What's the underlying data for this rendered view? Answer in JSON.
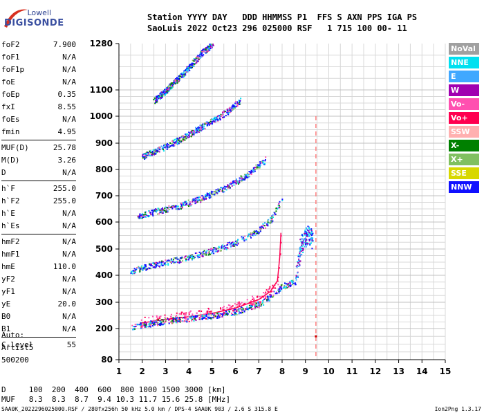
{
  "logo": {
    "line1": "Lowell",
    "line2": "DIGISONDE"
  },
  "header": {
    "row1": "Station YYYY DAY   DDD HHMMSS P1  FFS S AXN PPS IGA PS",
    "row2": "SaoLuis 2022 Oct23 296 025000 RSF   1 715 100 00- 11"
  },
  "params": [
    {
      "k": "foF2",
      "v": "7.900"
    },
    {
      "k": "foF1",
      "v": "N/A"
    },
    {
      "k": "foF1p",
      "v": "N/A"
    },
    {
      "k": "foE",
      "v": "N/A"
    },
    {
      "k": "foEp",
      "v": "0.35"
    },
    {
      "k": "fxI",
      "v": "8.55"
    },
    {
      "k": "foEs",
      "v": "N/A"
    },
    {
      "k": "fmin",
      "v": "4.95"
    },
    {
      "k": "MUF(D)",
      "v": "25.78"
    },
    {
      "k": "M(D)",
      "v": "3.26"
    },
    {
      "k": "D",
      "v": "N/A"
    },
    {
      "k": "h`F",
      "v": "255.0"
    },
    {
      "k": "h`F2",
      "v": "255.0"
    },
    {
      "k": "h`E",
      "v": "N/A"
    },
    {
      "k": "h`Es",
      "v": "N/A"
    },
    {
      "k": "hmF2",
      "v": "N/A"
    },
    {
      "k": "hmF1",
      "v": "N/A"
    },
    {
      "k": "hmE",
      "v": "110.0"
    },
    {
      "k": "yF2",
      "v": "N/A"
    },
    {
      "k": "yF1",
      "v": "N/A"
    },
    {
      "k": "yE",
      "v": "20.0"
    },
    {
      "k": "B0",
      "v": "N/A"
    },
    {
      "k": "B1",
      "v": "N/A"
    },
    {
      "k": "C-level",
      "v": "55"
    }
  ],
  "auto": {
    "l1": "Auto:",
    "l2": "Artist5",
    "l3": "500200"
  },
  "bottom": {
    "d_row": "D     100  200  400  600  800 1000 1500 3000 [km]",
    "muf_row": "MUF   8.3  8.3  8.7  9.4 10.3 11.7 15.6 25.8 [MHz]"
  },
  "footer": {
    "left": "SAA0K_2022296025000.RSF / 280fx256h 50 kHz 5.0 km / DPS-4 SAA0K 903 / 2.6 S 315.8 E",
    "right": "Ion2Png 1.3.17"
  },
  "legend": [
    {
      "label": "NoVal",
      "color": "#a0a0a0"
    },
    {
      "label": "NNE",
      "color": "#00e0f0"
    },
    {
      "label": "E",
      "color": "#40a8ff"
    },
    {
      "label": "W",
      "color": "#a000b0"
    },
    {
      "label": "Vo-",
      "color": "#ff50b0"
    },
    {
      "label": "Vo+",
      "color": "#ff0050"
    },
    {
      "label": "SSW",
      "color": "#ffb0b0"
    },
    {
      "label": "X-",
      "color": "#008000"
    },
    {
      "label": "X+",
      "color": "#80c060"
    },
    {
      "label": "SSE",
      "color": "#d8d800"
    },
    {
      "label": "NNW",
      "color": "#1010ff"
    }
  ],
  "chart_data": {
    "type": "scatter",
    "title": "",
    "xlabel": "",
    "ylabel": "",
    "xlim": [
      1,
      15
    ],
    "ylim": [
      80,
      1280
    ],
    "x_ticks": [
      1,
      2,
      3,
      4,
      5,
      6,
      7,
      8,
      9,
      10,
      11,
      12,
      13,
      14,
      15
    ],
    "y_ticks": [
      80,
      200,
      300,
      400,
      500,
      600,
      700,
      800,
      900,
      1000,
      1100,
      1280
    ],
    "grid": true,
    "y_scale": "virtual-height (nonlinear)",
    "markers": {
      "vertical_dashed_x": 9.45,
      "cursor_point": [
        9.45,
        170
      ]
    },
    "series": [
      {
        "name": "Vo+",
        "trace": "1st hop profile",
        "points": [
          [
            1.9,
            220
          ],
          [
            3,
            235
          ],
          [
            4,
            245
          ],
          [
            5,
            258
          ],
          [
            6,
            278
          ],
          [
            7,
            310
          ],
          [
            7.5,
            340
          ],
          [
            7.8,
            380
          ],
          [
            7.9,
            470
          ],
          [
            7.95,
            560
          ]
        ]
      },
      {
        "name": "NNW",
        "trace": "1st hop echoes",
        "points": [
          [
            1.5,
            208
          ],
          [
            2,
            215
          ],
          [
            3,
            230
          ],
          [
            4,
            240
          ],
          [
            5,
            250
          ],
          [
            6,
            265
          ],
          [
            7,
            295
          ],
          [
            7.5,
            320
          ],
          [
            8,
            360
          ],
          [
            8.6,
            380
          ]
        ]
      },
      {
        "name": "NNW",
        "trace": "2nd hop echoes",
        "points": [
          [
            1.5,
            415
          ],
          [
            2,
            430
          ],
          [
            3,
            450
          ],
          [
            4,
            470
          ],
          [
            5,
            495
          ],
          [
            6,
            525
          ],
          [
            7,
            570
          ],
          [
            7.6,
            620
          ],
          [
            8,
            700
          ]
        ]
      },
      {
        "name": "NNW",
        "trace": "3rd hop echoes",
        "points": [
          [
            1.8,
            625
          ],
          [
            2.5,
            640
          ],
          [
            3.5,
            660
          ],
          [
            4.5,
            690
          ],
          [
            5.5,
            730
          ],
          [
            6.5,
            780
          ],
          [
            7.3,
            840
          ]
        ]
      },
      {
        "name": "NNW",
        "trace": "4th hop echoes",
        "points": [
          [
            2,
            850
          ],
          [
            2.8,
            880
          ],
          [
            3.5,
            910
          ],
          [
            4.5,
            960
          ],
          [
            5.5,
            1010
          ],
          [
            6.2,
            1060
          ]
        ]
      },
      {
        "name": "NNW",
        "trace": "5th hop echoes",
        "points": [
          [
            2.5,
            1060
          ],
          [
            3,
            1100
          ],
          [
            3.7,
            1160
          ],
          [
            4.5,
            1240
          ],
          [
            5,
            1280
          ]
        ]
      },
      {
        "name": "E",
        "trace": "spread column",
        "points": [
          [
            8.6,
            400
          ],
          [
            8.7,
            450
          ],
          [
            8.8,
            520
          ],
          [
            9.1,
            560
          ],
          [
            9.3,
            530
          ]
        ]
      }
    ]
  }
}
